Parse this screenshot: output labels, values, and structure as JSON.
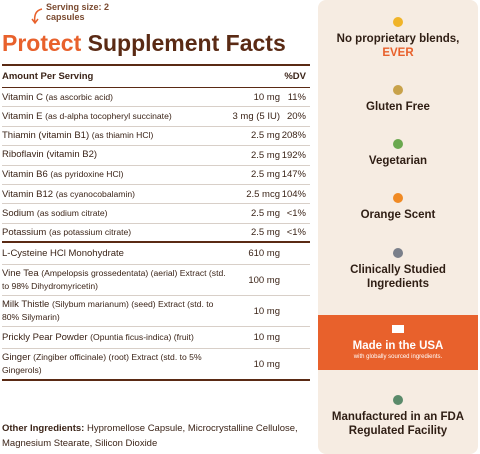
{
  "serving_note": "Serving size: 2 capsules",
  "title": {
    "highlight": "Protect",
    "rest": "Supplement Facts"
  },
  "table": {
    "header": {
      "amount": "Amount Per Serving",
      "dv": "%DV"
    },
    "vitamins": [
      {
        "name": "Vitamin C",
        "detail": "(as ascorbic acid)",
        "amount": "10 mg",
        "dv": "11%"
      },
      {
        "name": "Vitamin E",
        "detail": "(as d-alpha tocopheryl succinate)",
        "amount": "3 mg (5 IU)",
        "dv": "20%"
      },
      {
        "name": "Thiamin (vitamin B1)",
        "detail": "(as thiamin HCl)",
        "amount": "2.5 mg",
        "dv": "208%"
      },
      {
        "name": "Riboflavin (vitamin B2)",
        "detail": "",
        "amount": "2.5 mg",
        "dv": "192%"
      },
      {
        "name": "Vitamin B6",
        "detail": "(as pyridoxine HCl)",
        "amount": "2.5 mg",
        "dv": "147%"
      },
      {
        "name": "Vitamin B12",
        "detail": "(as cyanocobalamin)",
        "amount": "2.5 mcg",
        "dv": "104%"
      },
      {
        "name": "Sodium",
        "detail": "(as sodium citrate)",
        "amount": "2.5 mg",
        "dv": "<1%"
      },
      {
        "name": "Potassium",
        "detail": "(as potassium citrate)",
        "amount": "2.5 mg",
        "dv": "<1%"
      }
    ],
    "others": [
      {
        "name": "L-Cysteine HCl Monohydrate",
        "detail": "",
        "amount": "610 mg"
      },
      {
        "name": "Vine Tea",
        "detail": "(Ampelopsis grossedentata) (aerial) Extract (std. to 98% Dihydromyricetin)",
        "amount": "100 mg"
      },
      {
        "name": "Milk Thistle",
        "detail": "(Silybum marianum) (seed) Extract (std. to 80% Silymarin)",
        "amount": "10 mg"
      },
      {
        "name": "Prickly Pear Powder",
        "detail": "(Opuntia ficus-indica) (fruit)",
        "amount": "10 mg"
      },
      {
        "name": "Ginger",
        "detail": "(Zingiber officinale) (root) Extract (std. to 5% Gingerols)",
        "amount": "10 mg"
      }
    ],
    "other_ingredients": {
      "label": "Other Ingredients:",
      "text": "Hypromellose Capsule, Microcrystalline Cellulose, Magnesium Stearate, Silicon Dioxide"
    }
  },
  "features": [
    {
      "text": "No proprietary blends,",
      "highlight": "EVER"
    },
    {
      "text": "Gluten Free"
    },
    {
      "text": "Vegetarian"
    },
    {
      "text": "Orange Scent"
    },
    {
      "text": "Clinically Studied Ingredients"
    },
    {
      "text": "Made in the USA",
      "subtext": "with globally sourced ingredients."
    },
    {
      "text": "Manufactured in an FDA Regulated Facility"
    }
  ]
}
